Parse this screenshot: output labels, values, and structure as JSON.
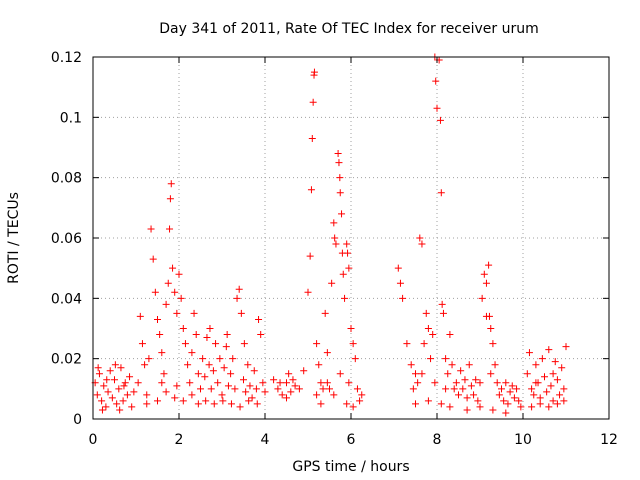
{
  "chart_data": {
    "type": "scatter",
    "title": "Day 341 of 2011, Rate Of TEC Index for receiver urum",
    "xlabel": "GPS time / hours",
    "ylabel": "ROTI / TECUs",
    "xlim": [
      0,
      12
    ],
    "ylim": [
      0,
      0.12
    ],
    "xticks": [
      0,
      2,
      4,
      6,
      8,
      10,
      12
    ],
    "yticks": [
      0,
      0.02,
      0.04,
      0.06,
      0.08,
      0.1,
      0.12
    ],
    "xtick_labels": [
      "0",
      "2",
      "4",
      "6",
      "8",
      "10",
      "12"
    ],
    "ytick_labels": [
      "0",
      "0.02",
      "0.04",
      "0.06",
      "0.08",
      "0.1",
      "0.12"
    ],
    "grid": true,
    "marker": "+",
    "marker_color": "#ff0000",
    "series": [
      {
        "name": "ROTI",
        "points": [
          [
            0.05,
            0.012
          ],
          [
            0.1,
            0.008
          ],
          [
            0.15,
            0.015
          ],
          [
            0.2,
            0.006
          ],
          [
            0.25,
            0.011
          ],
          [
            0.3,
            0.004
          ],
          [
            0.35,
            0.009
          ],
          [
            0.4,
            0.016
          ],
          [
            0.45,
            0.007
          ],
          [
            0.5,
            0.013
          ],
          [
            0.55,
            0.005
          ],
          [
            0.6,
            0.01
          ],
          [
            0.65,
            0.017
          ],
          [
            0.7,
            0.006
          ],
          [
            0.75,
            0.012
          ],
          [
            0.8,
            0.008
          ],
          [
            0.85,
            0.014
          ],
          [
            0.9,
            0.004
          ],
          [
            0.95,
            0.009
          ],
          [
            0.12,
            0.017
          ],
          [
            0.32,
            0.013
          ],
          [
            0.52,
            0.018
          ],
          [
            0.72,
            0.011
          ],
          [
            0.22,
            0.003
          ],
          [
            0.62,
            0.003
          ],
          [
            1.05,
            0.012
          ],
          [
            1.1,
            0.034
          ],
          [
            1.15,
            0.025
          ],
          [
            1.2,
            0.018
          ],
          [
            1.25,
            0.008
          ],
          [
            1.3,
            0.02
          ],
          [
            1.35,
            0.063
          ],
          [
            1.4,
            0.053
          ],
          [
            1.45,
            0.042
          ],
          [
            1.5,
            0.033
          ],
          [
            1.55,
            0.028
          ],
          [
            1.6,
            0.022
          ],
          [
            1.65,
            0.015
          ],
          [
            1.7,
            0.038
          ],
          [
            1.75,
            0.045
          ],
          [
            1.78,
            0.063
          ],
          [
            1.8,
            0.073
          ],
          [
            1.82,
            0.078
          ],
          [
            1.85,
            0.05
          ],
          [
            1.9,
            0.042
          ],
          [
            1.95,
            0.035
          ],
          [
            2.0,
            0.048
          ],
          [
            2.05,
            0.04
          ],
          [
            2.1,
            0.03
          ],
          [
            2.15,
            0.025
          ],
          [
            2.2,
            0.018
          ],
          [
            2.25,
            0.012
          ],
          [
            2.3,
            0.022
          ],
          [
            2.35,
            0.035
          ],
          [
            2.4,
            0.028
          ],
          [
            2.45,
            0.015
          ],
          [
            2.5,
            0.01
          ],
          [
            1.25,
            0.005
          ],
          [
            1.5,
            0.006
          ],
          [
            1.7,
            0.009
          ],
          [
            1.9,
            0.007
          ],
          [
            2.1,
            0.006
          ],
          [
            2.3,
            0.008
          ],
          [
            2.45,
            0.005
          ],
          [
            1.6,
            0.012
          ],
          [
            1.95,
            0.011
          ],
          [
            2.55,
            0.02
          ],
          [
            2.6,
            0.014
          ],
          [
            2.65,
            0.027
          ],
          [
            2.7,
            0.018
          ],
          [
            2.75,
            0.01
          ],
          [
            2.8,
            0.016
          ],
          [
            2.85,
            0.025
          ],
          [
            2.9,
            0.012
          ],
          [
            2.95,
            0.02
          ],
          [
            3.0,
            0.008
          ],
          [
            3.05,
            0.017
          ],
          [
            3.1,
            0.024
          ],
          [
            3.15,
            0.011
          ],
          [
            3.2,
            0.015
          ],
          [
            3.25,
            0.02
          ],
          [
            3.3,
            0.01
          ],
          [
            3.35,
            0.04
          ],
          [
            3.4,
            0.043
          ],
          [
            3.45,
            0.035
          ],
          [
            3.5,
            0.013
          ],
          [
            3.55,
            0.009
          ],
          [
            3.6,
            0.018
          ],
          [
            3.65,
            0.011
          ],
          [
            3.7,
            0.007
          ],
          [
            3.75,
            0.016
          ],
          [
            3.8,
            0.01
          ],
          [
            3.85,
            0.033
          ],
          [
            3.9,
            0.028
          ],
          [
            3.95,
            0.012
          ],
          [
            4.0,
            0.009
          ],
          [
            2.62,
            0.006
          ],
          [
            2.82,
            0.005
          ],
          [
            3.02,
            0.006
          ],
          [
            3.22,
            0.005
          ],
          [
            3.42,
            0.004
          ],
          [
            3.62,
            0.006
          ],
          [
            3.82,
            0.005
          ],
          [
            2.72,
            0.03
          ],
          [
            3.12,
            0.028
          ],
          [
            3.52,
            0.025
          ],
          [
            4.2,
            0.013
          ],
          [
            4.3,
            0.01
          ],
          [
            4.4,
            0.008
          ],
          [
            4.5,
            0.012
          ],
          [
            4.55,
            0.015
          ],
          [
            4.6,
            0.009
          ],
          [
            4.7,
            0.011
          ],
          [
            4.8,
            0.01
          ],
          [
            4.9,
            0.016
          ],
          [
            4.5,
            0.007
          ],
          [
            4.65,
            0.013
          ],
          [
            4.35,
            0.012
          ],
          [
            5.0,
            0.042
          ],
          [
            5.05,
            0.054
          ],
          [
            5.08,
            0.076
          ],
          [
            5.1,
            0.093
          ],
          [
            5.12,
            0.105
          ],
          [
            5.14,
            0.114
          ],
          [
            5.15,
            0.115
          ],
          [
            5.2,
            0.025
          ],
          [
            5.25,
            0.018
          ],
          [
            5.3,
            0.012
          ],
          [
            5.35,
            0.01
          ],
          [
            5.4,
            0.035
          ],
          [
            5.45,
            0.012
          ],
          [
            5.5,
            0.01
          ],
          [
            5.55,
            0.045
          ],
          [
            5.6,
            0.065
          ],
          [
            5.62,
            0.06
          ],
          [
            5.65,
            0.058
          ],
          [
            5.7,
            0.088
          ],
          [
            5.72,
            0.085
          ],
          [
            5.74,
            0.08
          ],
          [
            5.75,
            0.075
          ],
          [
            5.78,
            0.068
          ],
          [
            5.8,
            0.055
          ],
          [
            5.82,
            0.048
          ],
          [
            5.85,
            0.04
          ],
          [
            5.9,
            0.058
          ],
          [
            5.92,
            0.055
          ],
          [
            5.95,
            0.05
          ],
          [
            6.0,
            0.03
          ],
          [
            6.05,
            0.025
          ],
          [
            6.1,
            0.02
          ],
          [
            6.15,
            0.01
          ],
          [
            6.2,
            0.006
          ],
          [
            5.3,
            0.005
          ],
          [
            5.6,
            0.008
          ],
          [
            5.9,
            0.005
          ],
          [
            6.05,
            0.004
          ],
          [
            5.2,
            0.008
          ],
          [
            5.45,
            0.022
          ],
          [
            5.75,
            0.015
          ],
          [
            5.95,
            0.012
          ],
          [
            6.25,
            0.008
          ],
          [
            7.1,
            0.05
          ],
          [
            7.15,
            0.045
          ],
          [
            7.2,
            0.04
          ],
          [
            7.3,
            0.025
          ],
          [
            7.4,
            0.018
          ],
          [
            7.45,
            0.01
          ],
          [
            7.5,
            0.015
          ],
          [
            7.55,
            0.012
          ],
          [
            7.6,
            0.06
          ],
          [
            7.65,
            0.058
          ],
          [
            7.7,
            0.025
          ],
          [
            7.75,
            0.035
          ],
          [
            7.8,
            0.03
          ],
          [
            7.85,
            0.02
          ],
          [
            7.9,
            0.028
          ],
          [
            7.95,
            0.12
          ],
          [
            7.97,
            0.112
          ],
          [
            8.0,
            0.103
          ],
          [
            8.05,
            0.119
          ],
          [
            8.08,
            0.099
          ],
          [
            8.1,
            0.075
          ],
          [
            8.12,
            0.038
          ],
          [
            8.15,
            0.035
          ],
          [
            8.2,
            0.02
          ],
          [
            8.25,
            0.015
          ],
          [
            8.3,
            0.028
          ],
          [
            8.35,
            0.018
          ],
          [
            8.4,
            0.01
          ],
          [
            8.45,
            0.012
          ],
          [
            8.5,
            0.008
          ],
          [
            7.5,
            0.005
          ],
          [
            7.8,
            0.006
          ],
          [
            8.1,
            0.005
          ],
          [
            8.3,
            0.004
          ],
          [
            7.65,
            0.015
          ],
          [
            7.95,
            0.012
          ],
          [
            8.2,
            0.01
          ],
          [
            8.55,
            0.016
          ],
          [
            8.6,
            0.01
          ],
          [
            8.65,
            0.013
          ],
          [
            8.7,
            0.007
          ],
          [
            8.75,
            0.018
          ],
          [
            8.8,
            0.011
          ],
          [
            8.85,
            0.008
          ],
          [
            8.9,
            0.013
          ],
          [
            8.95,
            0.006
          ],
          [
            9.0,
            0.012
          ],
          [
            9.05,
            0.04
          ],
          [
            9.1,
            0.048
          ],
          [
            9.15,
            0.045
          ],
          [
            9.2,
            0.051
          ],
          [
            9.22,
            0.034
          ],
          [
            9.25,
            0.03
          ],
          [
            9.3,
            0.025
          ],
          [
            9.35,
            0.018
          ],
          [
            9.4,
            0.012
          ],
          [
            9.45,
            0.008
          ],
          [
            9.5,
            0.01
          ],
          [
            9.55,
            0.006
          ],
          [
            9.6,
            0.012
          ],
          [
            9.65,
            0.005
          ],
          [
            9.7,
            0.009
          ],
          [
            9.75,
            0.011
          ],
          [
            9.8,
            0.007
          ],
          [
            9.85,
            0.01
          ],
          [
            9.9,
            0.006
          ],
          [
            9.95,
            0.004
          ],
          [
            8.7,
            0.003
          ],
          [
            9.0,
            0.004
          ],
          [
            9.3,
            0.003
          ],
          [
            9.6,
            0.002
          ],
          [
            9.15,
            0.034
          ],
          [
            9.25,
            0.015
          ],
          [
            10.1,
            0.015
          ],
          [
            10.15,
            0.022
          ],
          [
            10.2,
            0.01
          ],
          [
            10.25,
            0.008
          ],
          [
            10.3,
            0.018
          ],
          [
            10.35,
            0.012
          ],
          [
            10.4,
            0.007
          ],
          [
            10.45,
            0.02
          ],
          [
            10.5,
            0.014
          ],
          [
            10.55,
            0.009
          ],
          [
            10.6,
            0.023
          ],
          [
            10.65,
            0.011
          ],
          [
            10.7,
            0.006
          ],
          [
            10.75,
            0.019
          ],
          [
            10.8,
            0.013
          ],
          [
            10.85,
            0.008
          ],
          [
            10.9,
            0.017
          ],
          [
            10.95,
            0.01
          ],
          [
            11.0,
            0.024
          ],
          [
            10.2,
            0.004
          ],
          [
            10.4,
            0.005
          ],
          [
            10.6,
            0.004
          ],
          [
            10.8,
            0.005
          ],
          [
            10.95,
            0.006
          ],
          [
            10.3,
            0.012
          ],
          [
            10.7,
            0.015
          ]
        ]
      }
    ]
  }
}
